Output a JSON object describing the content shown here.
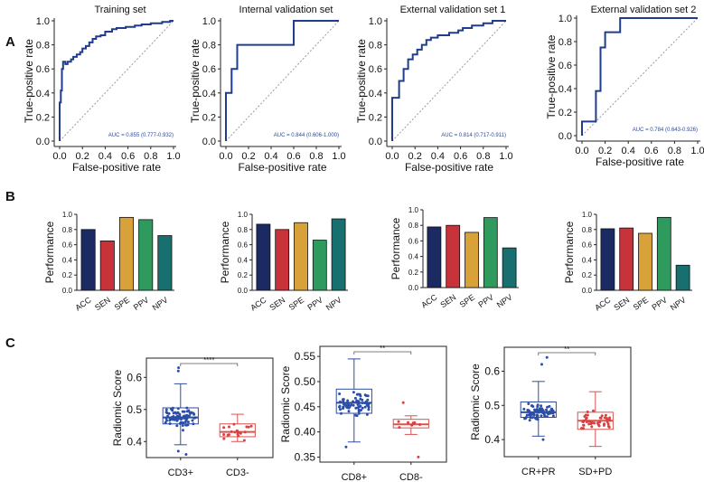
{
  "panel_labels": [
    "A",
    "B",
    "C"
  ],
  "colors": {
    "roc_line": "#1f3d8c",
    "diagonal": "#9a9a9a",
    "auc_text": "#2a4a9a",
    "bar_acc": "#1b2a63",
    "bar_sen": "#c8333a",
    "bar_spe": "#d9a13a",
    "bar_ppv": "#2e9a5e",
    "bar_npv": "#17706f",
    "box_blue": "#2f4d9f",
    "box_red": "#d9534f",
    "dot_blue": "#2b4ea8",
    "dot_red": "#d94040"
  },
  "chart_data": [
    {
      "type": "line",
      "panel": "A",
      "title": "Training set",
      "xlabel": "False-positive rate",
      "ylabel": "True-positive rate",
      "xlim": [
        0,
        1
      ],
      "ylim": [
        0,
        1
      ],
      "xticks": [
        "0.0",
        "0.2",
        "0.4",
        "0.6",
        "0.8",
        "1.0"
      ],
      "yticks": [
        "0.0",
        "0.2",
        "0.4",
        "0.6",
        "0.8",
        "1.0"
      ],
      "annotation": "AUC = 0.855 (0.777-0.932)",
      "x": [
        0,
        0,
        0.01,
        0.01,
        0.02,
        0.02,
        0.03,
        0.03,
        0.05,
        0.05,
        0.07,
        0.07,
        0.1,
        0.1,
        0.12,
        0.12,
        0.15,
        0.15,
        0.18,
        0.18,
        0.2,
        0.2,
        0.23,
        0.23,
        0.26,
        0.26,
        0.29,
        0.29,
        0.32,
        0.32,
        0.36,
        0.36,
        0.4,
        0.4,
        0.46,
        0.46,
        0.5,
        0.5,
        0.58,
        0.58,
        0.66,
        0.66,
        0.72,
        0.72,
        0.8,
        0.8,
        0.9,
        0.9,
        0.97,
        0.97,
        1.0
      ],
      "y": [
        0,
        0.32,
        0.32,
        0.42,
        0.42,
        0.6,
        0.6,
        0.66,
        0.66,
        0.64,
        0.64,
        0.66,
        0.66,
        0.68,
        0.68,
        0.7,
        0.7,
        0.72,
        0.72,
        0.74,
        0.74,
        0.77,
        0.77,
        0.79,
        0.79,
        0.82,
        0.82,
        0.85,
        0.85,
        0.87,
        0.87,
        0.88,
        0.88,
        0.91,
        0.91,
        0.93,
        0.93,
        0.94,
        0.94,
        0.95,
        0.95,
        0.96,
        0.96,
        0.97,
        0.97,
        0.98,
        0.98,
        0.99,
        0.99,
        1.0,
        1.0
      ]
    },
    {
      "type": "line",
      "panel": "A",
      "title": "Internal validation set",
      "xlabel": "False-positive rate",
      "ylabel": "True-positive rate",
      "xlim": [
        0,
        1
      ],
      "ylim": [
        0,
        1
      ],
      "xticks": [
        "0.0",
        "0.2",
        "0.4",
        "0.6",
        "0.8",
        "1.0"
      ],
      "yticks": [
        "0.0",
        "0.2",
        "0.4",
        "0.6",
        "0.8",
        "1.0"
      ],
      "annotation": "AUC = 0.844 (0.606-1.000)",
      "x": [
        0,
        0,
        0.05,
        0.05,
        0.1,
        0.1,
        0.6,
        0.6,
        1.0
      ],
      "y": [
        0,
        0.4,
        0.4,
        0.6,
        0.6,
        0.8,
        0.8,
        1.0,
        1.0
      ]
    },
    {
      "type": "line",
      "panel": "A",
      "title": "External validation set 1",
      "xlabel": "False-positive rate",
      "ylabel": "True-positive rate",
      "xlim": [
        0,
        1
      ],
      "ylim": [
        0,
        1
      ],
      "xticks": [
        "0.0",
        "0.2",
        "0.4",
        "0.6",
        "0.8",
        "1.0"
      ],
      "yticks": [
        "0.0",
        "0.2",
        "0.4",
        "0.6",
        "0.8",
        "1.0"
      ],
      "annotation": "AUC = 0.814 (0.717-0.911)",
      "x": [
        0,
        0,
        0.06,
        0.06,
        0.1,
        0.1,
        0.14,
        0.14,
        0.18,
        0.18,
        0.22,
        0.22,
        0.26,
        0.26,
        0.3,
        0.3,
        0.34,
        0.34,
        0.4,
        0.4,
        0.5,
        0.5,
        0.58,
        0.58,
        0.62,
        0.62,
        0.7,
        0.7,
        0.8,
        0.8,
        0.88,
        0.88,
        1.0
      ],
      "y": [
        0,
        0.36,
        0.36,
        0.5,
        0.5,
        0.6,
        0.6,
        0.68,
        0.68,
        0.72,
        0.72,
        0.76,
        0.76,
        0.8,
        0.8,
        0.84,
        0.84,
        0.86,
        0.86,
        0.88,
        0.88,
        0.9,
        0.9,
        0.92,
        0.92,
        0.94,
        0.94,
        0.96,
        0.96,
        0.98,
        0.98,
        1.0,
        1.0
      ]
    },
    {
      "type": "line",
      "panel": "A",
      "title": "External validation set 2",
      "xlabel": "False-positive rate",
      "ylabel": "True-positive rate",
      "xlim": [
        0,
        1
      ],
      "ylim": [
        0,
        1
      ],
      "xticks": [
        "0.0",
        "0.2",
        "0.4",
        "0.6",
        "0.8",
        "1.0"
      ],
      "yticks": [
        "0.0",
        "0.2",
        "0.4",
        "0.6",
        "0.8",
        "1.0"
      ],
      "annotation": "AUC = 0.784 (0.643-0.926)",
      "x": [
        0,
        0,
        0.12,
        0.12,
        0.16,
        0.16,
        0.2,
        0.2,
        0.33,
        0.33,
        0.58,
        0.58,
        1.0
      ],
      "y": [
        0,
        0.12,
        0.12,
        0.38,
        0.38,
        0.75,
        0.75,
        0.88,
        0.88,
        1.0,
        1.0,
        1.0,
        1.0
      ]
    },
    {
      "type": "bar",
      "panel": "B",
      "ylabel": "Performance",
      "categories": [
        "ACC",
        "SEN",
        "SPE",
        "PPV",
        "NPV"
      ],
      "values": [
        0.8,
        0.65,
        0.96,
        0.93,
        0.72
      ],
      "ylim": [
        0,
        1
      ],
      "yticks": [
        "0.0",
        "0.2",
        "0.4",
        "0.6",
        "0.8",
        "1.0"
      ]
    },
    {
      "type": "bar",
      "panel": "B",
      "ylabel": "Performance",
      "categories": [
        "ACC",
        "SEN",
        "SPE",
        "PPV",
        "NPV"
      ],
      "values": [
        0.87,
        0.8,
        0.89,
        0.66,
        0.94
      ],
      "ylim": [
        0,
        1
      ],
      "yticks": [
        "0.0",
        "0.2",
        "0.4",
        "0.6",
        "0.8",
        "1.0"
      ]
    },
    {
      "type": "bar",
      "panel": "B",
      "ylabel": "Performance",
      "categories": [
        "ACC",
        "SEN",
        "SPE",
        "PPV",
        "NPV"
      ],
      "values": [
        0.78,
        0.8,
        0.71,
        0.9,
        0.51
      ],
      "ylim": [
        0,
        1
      ],
      "yticks": [
        "0.0",
        "0.2",
        "0.4",
        "0.6",
        "0.8",
        "1.0"
      ]
    },
    {
      "type": "bar",
      "panel": "B",
      "ylabel": "Performance",
      "categories": [
        "ACC",
        "SEN",
        "SPE",
        "PPV",
        "NPV"
      ],
      "values": [
        0.81,
        0.82,
        0.75,
        0.96,
        0.33
      ],
      "ylim": [
        0,
        1
      ],
      "yticks": [
        "0.0",
        "0.2",
        "0.4",
        "0.6",
        "0.8",
        "1.0"
      ]
    },
    {
      "type": "box",
      "panel": "C",
      "ylabel": "Radiomic Score",
      "categories": [
        "CD3+",
        "CD3-"
      ],
      "ylim": [
        0.35,
        0.66
      ],
      "yticks": [
        0.4,
        0.5,
        0.6
      ],
      "ytick_labels": [
        "0.4",
        "0.5",
        "0.6"
      ],
      "significance": "****",
      "groups": [
        {
          "name": "CD3+",
          "min": 0.39,
          "q1": 0.455,
          "median": 0.475,
          "q3": 0.505,
          "max": 0.58,
          "n_points": 80,
          "outliers": [
            0.62,
            0.63,
            0.36,
            0.37
          ]
        },
        {
          "name": "CD3-",
          "min": 0.4,
          "q1": 0.415,
          "median": 0.43,
          "q3": 0.455,
          "max": 0.485,
          "n_points": 20,
          "outliers": []
        }
      ]
    },
    {
      "type": "box",
      "panel": "C",
      "ylabel": "Radiomic Score",
      "categories": [
        "CD8+",
        "CD8-"
      ],
      "ylim": [
        0.34,
        0.57
      ],
      "yticks": [
        0.35,
        0.4,
        0.45,
        0.5,
        0.55
      ],
      "ytick_labels": [
        "0.35",
        "0.40",
        "0.45",
        "0.50",
        "0.55"
      ],
      "significance": "**",
      "groups": [
        {
          "name": "CD8+",
          "min": 0.38,
          "q1": 0.437,
          "median": 0.458,
          "q3": 0.485,
          "max": 0.545,
          "n_points": 70,
          "outliers": [
            0.37
          ]
        },
        {
          "name": "CD8-",
          "min": 0.395,
          "q1": 0.408,
          "median": 0.415,
          "q3": 0.425,
          "max": 0.432,
          "n_points": 8,
          "outliers": [
            0.458,
            0.35
          ]
        }
      ]
    },
    {
      "type": "box",
      "panel": "C",
      "ylabel": "Radiomic Score",
      "categories": [
        "CR+PR",
        "SD+PD"
      ],
      "ylim": [
        0.35,
        0.67
      ],
      "yticks": [
        0.4,
        0.5,
        0.6
      ],
      "ytick_labels": [
        "0.4",
        "0.5",
        "0.6"
      ],
      "significance": "**",
      "groups": [
        {
          "name": "CR+PR",
          "min": 0.41,
          "q1": 0.465,
          "median": 0.48,
          "q3": 0.51,
          "max": 0.57,
          "n_points": 75,
          "outliers": [
            0.62,
            0.64,
            0.4
          ]
        },
        {
          "name": "SD+PD",
          "min": 0.38,
          "q1": 0.43,
          "median": 0.455,
          "q3": 0.48,
          "max": 0.54,
          "n_points": 45,
          "outliers": []
        }
      ]
    }
  ]
}
